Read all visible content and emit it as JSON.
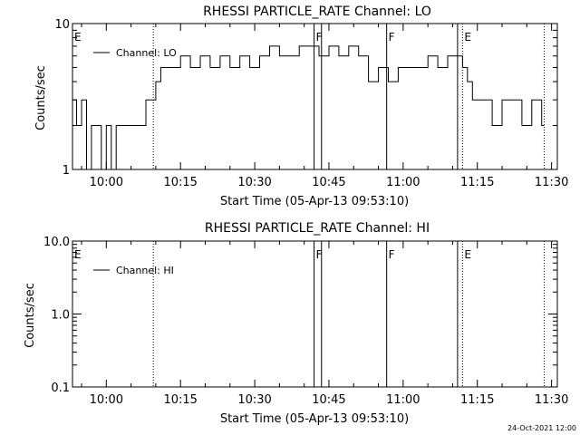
{
  "footer_timestamp": "24-Oct-2021 12:00",
  "chart_data": [
    {
      "type": "line",
      "title": "RHESSI PARTICLE_RATE Channel: LO",
      "xlabel": "Start Time (05-Apr-13 09:53:10)",
      "ylabel": "Counts/sec",
      "yscale": "log",
      "ylim": [
        1,
        10
      ],
      "xlim": [
        "09:53:10",
        "11:31:10"
      ],
      "ytick_labels": [
        {
          "value": 1,
          "label": "1"
        },
        {
          "value": 10,
          "label": "10"
        }
      ],
      "xtick_labels": [
        {
          "time": "10:00",
          "label": "10:00"
        },
        {
          "time": "10:15",
          "label": "10:15"
        },
        {
          "time": "10:30",
          "label": "10:30"
        },
        {
          "time": "10:45",
          "label": "10:45"
        },
        {
          "time": "11:00",
          "label": "11:00"
        },
        {
          "time": "11:15",
          "label": "11:15"
        },
        {
          "time": "11:30",
          "label": "11:30"
        }
      ],
      "legend": {
        "placement": "top-left",
        "entries": [
          "Channel: LO"
        ]
      },
      "series": [
        {
          "name": "Channel: LO",
          "x": [
            "09:53:10",
            "09:54:00",
            "09:55:00",
            "09:56:00",
            "09:57:00",
            "09:58:00",
            "09:59:00",
            "10:00:00",
            "10:01:00",
            "10:02:00",
            "10:03:00",
            "10:04:00",
            "10:05:00",
            "10:06:00",
            "10:07:00",
            "10:08:00",
            "10:09:00",
            "10:10:00",
            "10:11:00",
            "10:12:00",
            "10:13:00",
            "10:15:00",
            "10:17:00",
            "10:19:00",
            "10:21:00",
            "10:23:00",
            "10:25:00",
            "10:27:00",
            "10:29:00",
            "10:31:00",
            "10:33:00",
            "10:35:00",
            "10:37:00",
            "10:39:00",
            "10:41:00",
            "10:42:00",
            "10:43:00",
            "10:45:00",
            "10:47:00",
            "10:49:00",
            "10:51:00",
            "10:53:00",
            "10:55:00",
            "10:57:00",
            "10:59:00",
            "11:01:00",
            "11:03:00",
            "11:05:00",
            "11:07:00",
            "11:09:00",
            "11:11:00",
            "11:12:00",
            "11:13:00",
            "11:14:00",
            "11:15:00",
            "11:16:00",
            "11:18:00",
            "11:20:00",
            "11:22:00",
            "11:24:00",
            "11:26:00",
            "11:28:00"
          ],
          "y": [
            3,
            2,
            3,
            1,
            2,
            2,
            1,
            2,
            1,
            2,
            2,
            2,
            2,
            2,
            2,
            3,
            3,
            4,
            5,
            5,
            5,
            6,
            5,
            6,
            5,
            6,
            5,
            6,
            5,
            6,
            7,
            6,
            6,
            7,
            7,
            7,
            6,
            7,
            6,
            7,
            6,
            4,
            5,
            4,
            5,
            5,
            5,
            6,
            5,
            6,
            6,
            5,
            4,
            3,
            3,
            3,
            2,
            3,
            3,
            2,
            3,
            2
          ]
        }
      ],
      "vertical_markers": [
        {
          "time": "09:53:10",
          "style": "dotted",
          "label": "E"
        },
        {
          "time": "10:09:30",
          "style": "dotted",
          "label": ""
        },
        {
          "time": "10:42:00",
          "style": "solid",
          "label": "F"
        },
        {
          "time": "10:43:30",
          "style": "solid",
          "label": ""
        },
        {
          "time": "10:56:40",
          "style": "solid",
          "label": "F"
        },
        {
          "time": "11:11:00",
          "style": "solid",
          "label": ""
        },
        {
          "time": "11:12:00",
          "style": "dotted",
          "label": "E"
        },
        {
          "time": "11:28:30",
          "style": "dotted",
          "label": ""
        }
      ]
    },
    {
      "type": "line",
      "title": "RHESSI PARTICLE_RATE Channel: HI",
      "xlabel": "Start Time (05-Apr-13 09:53:10)",
      "ylabel": "Counts/sec",
      "yscale": "log",
      "ylim": [
        0.1,
        10
      ],
      "xlim": [
        "09:53:10",
        "11:31:10"
      ],
      "ytick_labels": [
        {
          "value": 0.1,
          "label": "0.1"
        },
        {
          "value": 1,
          "label": "1.0"
        },
        {
          "value": 10,
          "label": "10.0"
        }
      ],
      "xtick_labels": [
        {
          "time": "10:00",
          "label": "10:00"
        },
        {
          "time": "10:15",
          "label": "10:15"
        },
        {
          "time": "10:30",
          "label": "10:30"
        },
        {
          "time": "10:45",
          "label": "10:45"
        },
        {
          "time": "11:00",
          "label": "11:00"
        },
        {
          "time": "11:15",
          "label": "11:15"
        },
        {
          "time": "11:30",
          "label": "11:30"
        }
      ],
      "legend": {
        "placement": "top-left",
        "entries": [
          "Channel: HI"
        ]
      },
      "series": [
        {
          "name": "Channel: HI",
          "x": [],
          "y": []
        }
      ],
      "vertical_markers": [
        {
          "time": "09:53:10",
          "style": "dotted",
          "label": "E"
        },
        {
          "time": "10:09:30",
          "style": "dotted",
          "label": ""
        },
        {
          "time": "10:42:00",
          "style": "solid",
          "label": "F"
        },
        {
          "time": "10:43:30",
          "style": "solid",
          "label": ""
        },
        {
          "time": "10:56:40",
          "style": "solid",
          "label": "F"
        },
        {
          "time": "11:11:00",
          "style": "solid",
          "label": ""
        },
        {
          "time": "11:12:00",
          "style": "dotted",
          "label": "E"
        },
        {
          "time": "11:28:30",
          "style": "dotted",
          "label": ""
        }
      ]
    }
  ]
}
